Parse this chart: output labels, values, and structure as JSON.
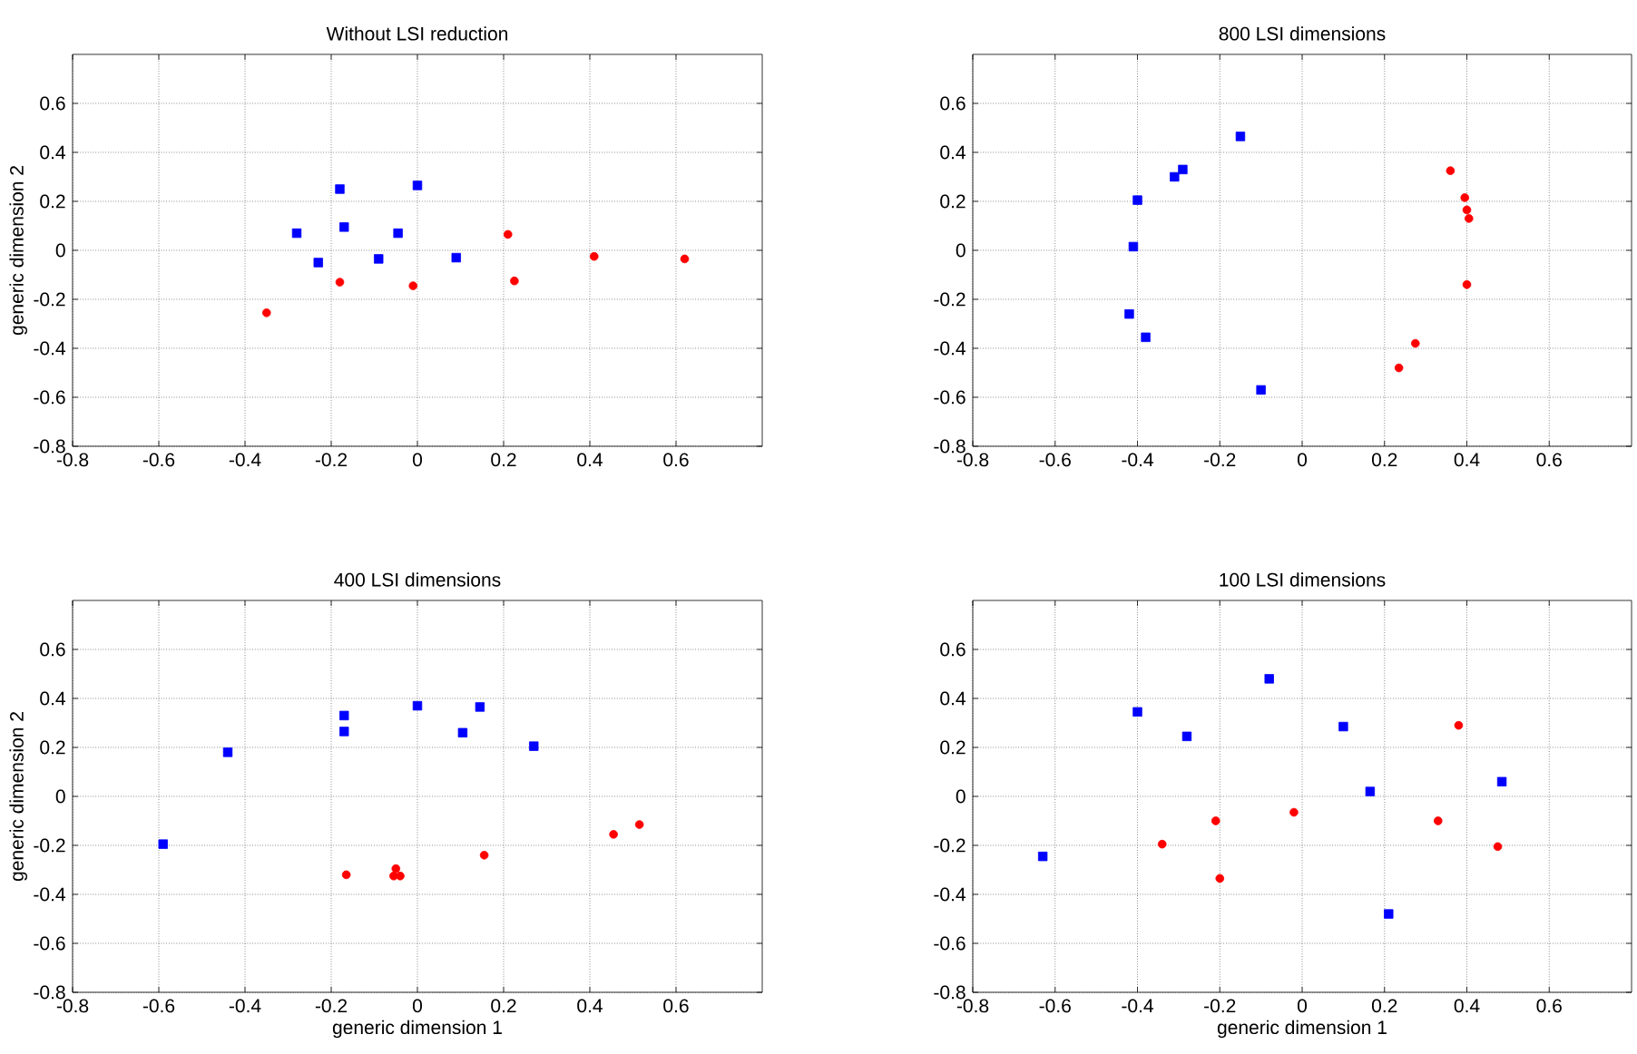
{
  "chart_data": [
    {
      "type": "scatter",
      "title": "Without LSI reduction",
      "ylabel": "generic dimension 2",
      "xlim": [
        -0.8,
        0.8
      ],
      "ylim": [
        -0.8,
        0.8
      ],
      "xticks": [
        -0.8,
        -0.6,
        -0.4,
        -0.2,
        0,
        0.2,
        0.4,
        0.6
      ],
      "yticks": [
        -0.8,
        -0.6,
        -0.4,
        -0.2,
        0,
        0.2,
        0.4,
        0.6
      ],
      "grid": true,
      "series": [
        {
          "color": "#0000ff",
          "marker": "square",
          "x": [
            -0.28,
            -0.23,
            -0.18,
            -0.17,
            -0.09,
            -0.045,
            0,
            0.09
          ],
          "values": [
            0.07,
            -0.05,
            0.25,
            0.095,
            -0.035,
            0.07,
            0.265,
            -0.03
          ]
        },
        {
          "color": "#ff0000",
          "marker": "circle",
          "x": [
            -0.35,
            -0.18,
            -0.01,
            0.21,
            0.225,
            0.41,
            0.62
          ],
          "values": [
            -0.255,
            -0.13,
            -0.145,
            0.065,
            -0.125,
            -0.025,
            -0.035
          ]
        }
      ]
    },
    {
      "type": "scatter",
      "title": "800 LSI dimensions",
      "xlim": [
        -0.8,
        0.8
      ],
      "ylim": [
        -0.8,
        0.8
      ],
      "xticks": [
        -0.8,
        -0.6,
        -0.4,
        -0.2,
        0,
        0.2,
        0.4,
        0.6
      ],
      "yticks": [
        -0.8,
        -0.6,
        -0.4,
        -0.2,
        0,
        0.2,
        0.4,
        0.6
      ],
      "grid": true,
      "series": [
        {
          "color": "#0000ff",
          "marker": "square",
          "x": [
            -0.4,
            -0.41,
            -0.42,
            -0.38,
            -0.31,
            -0.29,
            -0.15,
            -0.1
          ],
          "values": [
            0.205,
            0.015,
            -0.26,
            -0.355,
            0.3,
            0.33,
            0.465,
            -0.57
          ]
        },
        {
          "color": "#ff0000",
          "marker": "circle",
          "x": [
            0.36,
            0.395,
            0.4,
            0.405,
            0.4,
            0.275,
            0.235
          ],
          "values": [
            0.325,
            0.215,
            0.165,
            0.13,
            -0.14,
            -0.38,
            -0.48
          ]
        }
      ]
    },
    {
      "type": "scatter",
      "title": "400 LSI dimensions",
      "xlabel": "generic dimension 1",
      "ylabel": "generic dimension 2",
      "xlim": [
        -0.8,
        0.8
      ],
      "ylim": [
        -0.8,
        0.8
      ],
      "xticks": [
        -0.8,
        -0.6,
        -0.4,
        -0.2,
        0,
        0.2,
        0.4,
        0.6
      ],
      "yticks": [
        -0.8,
        -0.6,
        -0.4,
        -0.2,
        0,
        0.2,
        0.4,
        0.6
      ],
      "grid": true,
      "series": [
        {
          "color": "#0000ff",
          "marker": "square",
          "x": [
            -0.59,
            -0.44,
            -0.17,
            -0.17,
            0,
            0.105,
            0.145,
            0.27
          ],
          "values": [
            -0.195,
            0.18,
            0.33,
            0.265,
            0.37,
            0.26,
            0.365,
            0.205
          ]
        },
        {
          "color": "#ff0000",
          "marker": "circle",
          "x": [
            -0.165,
            -0.05,
            -0.055,
            -0.04,
            0.155,
            0.455,
            0.515
          ],
          "values": [
            -0.32,
            -0.295,
            -0.325,
            -0.325,
            -0.24,
            -0.155,
            -0.115
          ]
        }
      ]
    },
    {
      "type": "scatter",
      "title": "100 LSI dimensions",
      "xlabel": "generic dimension 1",
      "xlim": [
        -0.8,
        0.8
      ],
      "ylim": [
        -0.8,
        0.8
      ],
      "xticks": [
        -0.8,
        -0.6,
        -0.4,
        -0.2,
        0,
        0.2,
        0.4,
        0.6
      ],
      "yticks": [
        -0.8,
        -0.6,
        -0.4,
        -0.2,
        0,
        0.2,
        0.4,
        0.6
      ],
      "grid": true,
      "series": [
        {
          "color": "#0000ff",
          "marker": "square",
          "x": [
            -0.63,
            -0.4,
            -0.28,
            -0.08,
            0.1,
            0.165,
            0.21,
            0.485
          ],
          "values": [
            -0.245,
            0.345,
            0.245,
            0.48,
            0.285,
            0.02,
            -0.48,
            0.06
          ]
        },
        {
          "color": "#ff0000",
          "marker": "circle",
          "x": [
            -0.34,
            -0.21,
            -0.2,
            -0.02,
            0.33,
            0.38,
            0.475
          ],
          "values": [
            -0.195,
            -0.1,
            -0.335,
            -0.065,
            -0.1,
            0.29,
            -0.205
          ]
        }
      ]
    }
  ]
}
